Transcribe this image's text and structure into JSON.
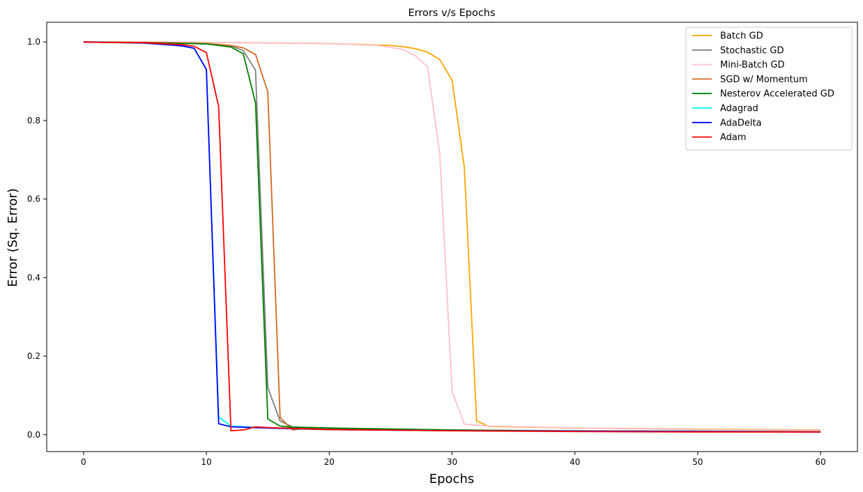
{
  "chart_data": {
    "type": "line",
    "title": "Errors v/s Epochs",
    "xlabel": "Epochs",
    "ylabel": "Error (Sq. Error)",
    "xlim": [
      -3,
      63
    ],
    "ylim": [
      -0.043,
      1.05
    ],
    "xticks": [
      0,
      10,
      20,
      30,
      40,
      50,
      60
    ],
    "yticks": [
      0.0,
      0.2,
      0.4,
      0.6,
      0.8,
      1.0
    ],
    "grid": false,
    "legend_position": "upper right",
    "series": [
      {
        "name": "Batch GD",
        "color": "#ffa500",
        "points": [
          [
            0,
            1.0
          ],
          [
            10,
            0.999
          ],
          [
            20,
            0.996
          ],
          [
            25,
            0.991
          ],
          [
            26,
            0.988
          ],
          [
            27,
            0.983
          ],
          [
            28,
            0.974
          ],
          [
            29,
            0.955
          ],
          [
            30,
            0.903
          ],
          [
            31,
            0.68
          ],
          [
            32,
            0.035
          ],
          [
            33,
            0.021
          ],
          [
            40,
            0.017
          ],
          [
            50,
            0.014
          ],
          [
            60,
            0.012
          ]
        ]
      },
      {
        "name": "Stochastic GD",
        "color": "#808080",
        "points": [
          [
            0,
            1.0
          ],
          [
            5,
            0.998
          ],
          [
            10,
            0.995
          ],
          [
            12,
            0.99
          ],
          [
            13,
            0.978
          ],
          [
            14,
            0.928
          ],
          [
            15,
            0.12
          ],
          [
            16,
            0.035
          ],
          [
            17,
            0.02
          ],
          [
            20,
            0.016
          ],
          [
            30,
            0.012
          ],
          [
            40,
            0.01
          ],
          [
            50,
            0.009
          ],
          [
            60,
            0.008
          ]
        ]
      },
      {
        "name": "Mini-Batch GD",
        "color": "#ffc0cb",
        "points": [
          [
            0,
            1.0
          ],
          [
            10,
            0.999
          ],
          [
            20,
            0.996
          ],
          [
            24,
            0.991
          ],
          [
            26,
            0.981
          ],
          [
            27,
            0.965
          ],
          [
            28,
            0.937
          ],
          [
            29,
            0.715
          ],
          [
            30,
            0.11
          ],
          [
            31,
            0.027
          ],
          [
            33,
            0.022
          ],
          [
            40,
            0.017
          ],
          [
            50,
            0.013
          ],
          [
            60,
            0.011
          ]
        ]
      },
      {
        "name": "SGD w/ Momentum",
        "color": "#d2691e",
        "points": [
          [
            0,
            1.0
          ],
          [
            5,
            0.999
          ],
          [
            10,
            0.996
          ],
          [
            12,
            0.991
          ],
          [
            13,
            0.985
          ],
          [
            14,
            0.968
          ],
          [
            15,
            0.873
          ],
          [
            16,
            0.044
          ],
          [
            17,
            0.012
          ],
          [
            18,
            0.016
          ],
          [
            20,
            0.015
          ],
          [
            30,
            0.011
          ],
          [
            40,
            0.009
          ],
          [
            50,
            0.008
          ],
          [
            60,
            0.007
          ]
        ]
      },
      {
        "name": "Nesterov Accelerated GD",
        "color": "#008000",
        "points": [
          [
            0,
            1.0
          ],
          [
            5,
            0.998
          ],
          [
            10,
            0.995
          ],
          [
            12,
            0.987
          ],
          [
            13,
            0.97
          ],
          [
            14,
            0.845
          ],
          [
            15,
            0.04
          ],
          [
            16,
            0.022
          ],
          [
            17,
            0.019
          ],
          [
            19,
            0.018
          ],
          [
            20,
            0.017
          ],
          [
            30,
            0.012
          ],
          [
            40,
            0.009
          ],
          [
            50,
            0.008
          ],
          [
            60,
            0.007
          ]
        ]
      },
      {
        "name": "Adagrad",
        "color": "#00ffff",
        "points": [
          [
            0,
            1.0
          ],
          [
            5,
            0.997
          ],
          [
            8,
            0.99
          ],
          [
            9,
            0.984
          ],
          [
            10,
            0.93
          ],
          [
            11,
            0.045
          ],
          [
            12,
            0.022
          ],
          [
            15,
            0.017
          ],
          [
            20,
            0.013
          ],
          [
            30,
            0.01
          ],
          [
            40,
            0.009
          ],
          [
            50,
            0.008
          ],
          [
            60,
            0.007
          ]
        ]
      },
      {
        "name": "AdaDelta",
        "color": "#0000ff",
        "points": [
          [
            0,
            1.0
          ],
          [
            5,
            0.997
          ],
          [
            8,
            0.99
          ],
          [
            9,
            0.984
          ],
          [
            10,
            0.93
          ],
          [
            11,
            0.028
          ],
          [
            12,
            0.02
          ],
          [
            15,
            0.017
          ],
          [
            20,
            0.013
          ],
          [
            30,
            0.01
          ],
          [
            40,
            0.009
          ],
          [
            50,
            0.008
          ],
          [
            60,
            0.007
          ]
        ]
      },
      {
        "name": "Adam",
        "color": "#ff0000",
        "points": [
          [
            0,
            1.0
          ],
          [
            1,
            0.999
          ],
          [
            5,
            0.998
          ],
          [
            8,
            0.993
          ],
          [
            9,
            0.989
          ],
          [
            10,
            0.973
          ],
          [
            11,
            0.835
          ],
          [
            12,
            0.01
          ],
          [
            13,
            0.012
          ],
          [
            14,
            0.02
          ],
          [
            15,
            0.018
          ],
          [
            20,
            0.013
          ],
          [
            30,
            0.01
          ],
          [
            40,
            0.008
          ],
          [
            50,
            0.007
          ],
          [
            60,
            0.007
          ]
        ]
      }
    ]
  }
}
